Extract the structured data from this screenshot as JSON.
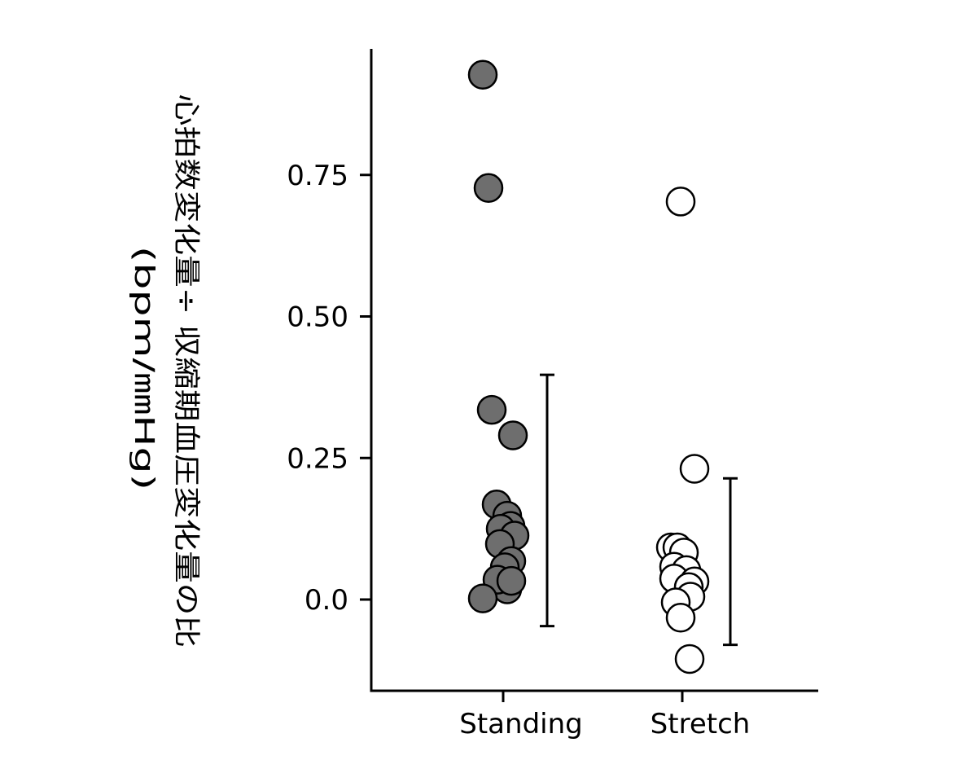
{
  "chart_data": {
    "type": "scatter",
    "ylabel_main": "心拍数変化量÷ 収縮期血圧変化量の比",
    "ylabel_unit": "(bpm/㎜Hg)",
    "categories": [
      "Standing",
      "Stretch"
    ],
    "yticks": [
      "0.0",
      "0.25",
      "0.50",
      "0.75"
    ],
    "ytick_values": [
      0.0,
      0.25,
      0.5,
      0.75
    ],
    "ylim": [
      -0.16,
      0.97
    ],
    "grid": false,
    "series": [
      {
        "category": "Standing",
        "fill": "#6e6e6e",
        "edge": "#000000",
        "points": [
          {
            "offset": -0.25,
            "y": 0.927
          },
          {
            "offset": -0.18,
            "y": 0.727
          },
          {
            "offset": -0.14,
            "y": 0.335
          },
          {
            "offset": 0.12,
            "y": 0.29
          },
          {
            "offset": -0.08,
            "y": 0.168
          },
          {
            "offset": 0.05,
            "y": 0.148
          },
          {
            "offset": 0.09,
            "y": 0.13
          },
          {
            "offset": -0.03,
            "y": 0.125
          },
          {
            "offset": 0.14,
            "y": 0.113
          },
          {
            "offset": -0.04,
            "y": 0.098
          },
          {
            "offset": 0.1,
            "y": 0.068
          },
          {
            "offset": 0.02,
            "y": 0.057
          },
          {
            "offset": 0.05,
            "y": 0.018
          },
          {
            "offset": -0.07,
            "y": 0.035
          },
          {
            "offset": 0.1,
            "y": 0.033
          },
          {
            "offset": -0.25,
            "y": 0.002
          }
        ],
        "whisker": {
          "low": -0.047,
          "high": 0.397
        }
      },
      {
        "category": "Stretch",
        "fill": "#ffffff",
        "edge": "#000000",
        "points": [
          {
            "offset": -0.02,
            "y": 0.703
          },
          {
            "offset": 0.15,
            "y": 0.231
          },
          {
            "offset": -0.14,
            "y": 0.092
          },
          {
            "offset": -0.06,
            "y": 0.092
          },
          {
            "offset": 0.02,
            "y": 0.083
          },
          {
            "offset": -0.1,
            "y": 0.058
          },
          {
            "offset": 0.05,
            "y": 0.052
          },
          {
            "offset": -0.1,
            "y": 0.037
          },
          {
            "offset": 0.15,
            "y": 0.032
          },
          {
            "offset": 0.08,
            "y": 0.022
          },
          {
            "offset": 0.1,
            "y": 0.005
          },
          {
            "offset": -0.08,
            "y": -0.005
          },
          {
            "offset": -0.02,
            "y": -0.032
          },
          {
            "offset": 0.09,
            "y": -0.105
          }
        ],
        "whisker": {
          "low": -0.08,
          "high": 0.214
        }
      }
    ]
  }
}
